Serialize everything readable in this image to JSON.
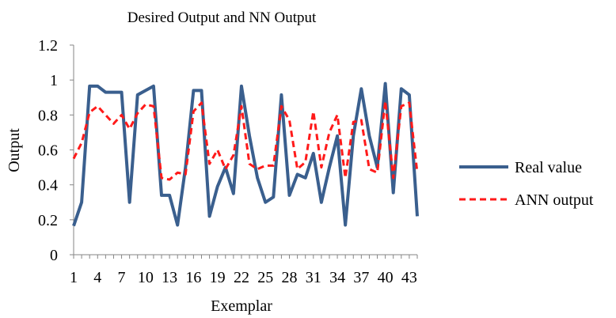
{
  "chart_data": {
    "type": "line",
    "title": "Desired Output and NN Output",
    "xlabel": "Exemplar",
    "ylabel": "Output",
    "ylim": [
      0,
      1.2
    ],
    "yticks": [
      "0",
      "0.2",
      "0.4",
      "0.6",
      "0.8",
      "1",
      "1.2"
    ],
    "xticks": [
      "1",
      "4",
      "7",
      "10",
      "13",
      "16",
      "19",
      "22",
      "25",
      "28",
      "31",
      "34",
      "37",
      "40",
      "43"
    ],
    "x": [
      1,
      2,
      3,
      4,
      5,
      6,
      7,
      8,
      9,
      10,
      11,
      12,
      13,
      14,
      15,
      16,
      17,
      18,
      19,
      20,
      21,
      22,
      23,
      24,
      25,
      26,
      27,
      28,
      29,
      30,
      31,
      32,
      33,
      34,
      35,
      36,
      37,
      38,
      39,
      40,
      41,
      42,
      43,
      44
    ],
    "grid": false,
    "legend_position": "right",
    "series": [
      {
        "name": "Real value",
        "color": "#3a5f8e",
        "style": "solid",
        "values": [
          0.165,
          0.3,
          0.965,
          0.965,
          0.93,
          0.93,
          0.93,
          0.3,
          0.915,
          0.94,
          0.965,
          0.34,
          0.34,
          0.17,
          0.5,
          0.94,
          0.94,
          0.22,
          0.39,
          0.5,
          0.35,
          0.965,
          0.68,
          0.44,
          0.3,
          0.33,
          0.915,
          0.34,
          0.46,
          0.44,
          0.58,
          0.3,
          0.5,
          0.68,
          0.17,
          0.68,
          0.95,
          0.68,
          0.5,
          0.98,
          0.355,
          0.95,
          0.915,
          0.22
        ]
      },
      {
        "name": "ANN output",
        "color": "#ff1a1a",
        "style": "dashed",
        "values": [
          0.55,
          0.64,
          0.815,
          0.85,
          0.8,
          0.75,
          0.8,
          0.72,
          0.81,
          0.86,
          0.85,
          0.44,
          0.43,
          0.47,
          0.46,
          0.82,
          0.87,
          0.52,
          0.6,
          0.49,
          0.57,
          0.85,
          0.52,
          0.49,
          0.51,
          0.51,
          0.85,
          0.77,
          0.49,
          0.53,
          0.82,
          0.5,
          0.7,
          0.8,
          0.44,
          0.76,
          0.77,
          0.49,
          0.47,
          0.88,
          0.44,
          0.85,
          0.87,
          0.47
        ]
      }
    ]
  }
}
